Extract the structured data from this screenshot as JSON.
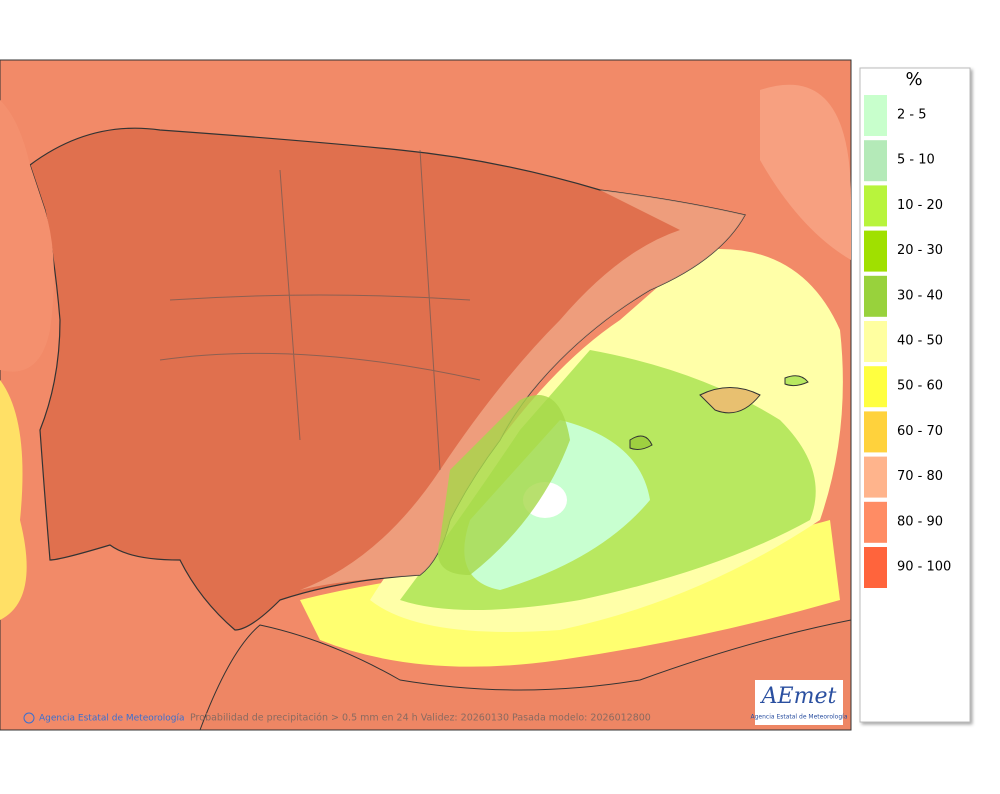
{
  "legend": {
    "title": "%",
    "items": [
      {
        "label": "2 - 5",
        "color": "#c8ffcc"
      },
      {
        "label": "5 - 10",
        "color": "#b4eab8"
      },
      {
        "label": "10 - 20",
        "color": "#b8f43c"
      },
      {
        "label": "20 - 30",
        "color": "#a0e000"
      },
      {
        "label": "30 - 40",
        "color": "#98d23c"
      },
      {
        "label": "40 - 50",
        "color": "#ffffa0"
      },
      {
        "label": "50 - 60",
        "color": "#ffff40"
      },
      {
        "label": "60 - 70",
        "color": "#ffd23c"
      },
      {
        "label": "70 - 80",
        "color": "#ffb48c"
      },
      {
        "label": "80 - 90",
        "color": "#ff8c64"
      },
      {
        "label": "90 - 100",
        "color": "#ff643c"
      }
    ]
  },
  "footer": {
    "credit": "Agencia Estatal de Meteorología",
    "caption": "Probabilidad de precipitación > 0.5 mm en 24 h Validez: 20260130 Pasada modelo: 2026012800"
  },
  "logo": {
    "brand": "AEmet",
    "subtitle": "Agencia Estatal de Meteorología"
  }
}
